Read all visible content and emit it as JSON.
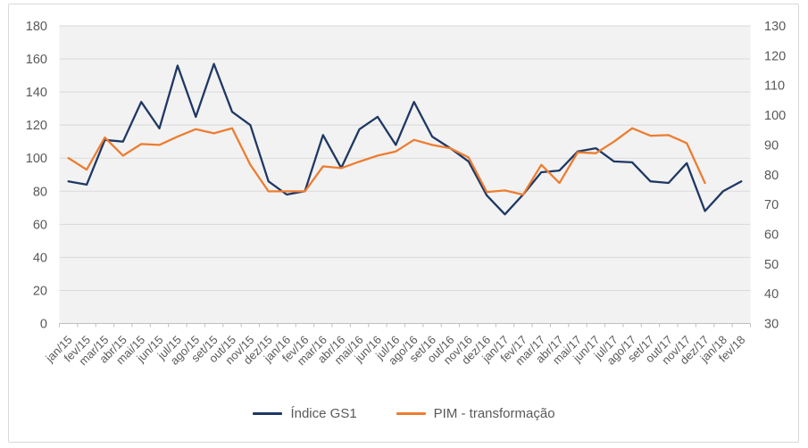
{
  "chart_data": {
    "type": "line",
    "title": "",
    "categories": [
      "jan/15",
      "fev/15",
      "mar/15",
      "abr/15",
      "mai/15",
      "jun/15",
      "jul/15",
      "ago/15",
      "set/15",
      "out/15",
      "nov/15",
      "dez/15",
      "jan/16",
      "fev/16",
      "mar/16",
      "abr/16",
      "mai/16",
      "jun/16",
      "jul/16",
      "ago/16",
      "set/16",
      "out/16",
      "nov/16",
      "dez/16",
      "jan/17",
      "fev/17",
      "mar/17",
      "abr/17",
      "mai/17",
      "jun/17",
      "jul/17",
      "ago/17",
      "set/17",
      "out/17",
      "nov/17",
      "dez/17",
      "jan/18",
      "fev/18"
    ],
    "series": [
      {
        "name": "Índice GS1",
        "axis": "left",
        "color": "#1f3864",
        "values": [
          86,
          84,
          111,
          110,
          134,
          118,
          156,
          125,
          157,
          128,
          120,
          86,
          78,
          80,
          114,
          94,
          117.5,
          125,
          108,
          134,
          113,
          106,
          98,
          77.5,
          66,
          78,
          91.5,
          92.5,
          104,
          106,
          98,
          97.5,
          86,
          85,
          97,
          68,
          80,
          86
        ]
      },
      {
        "name": "PIM - transformação",
        "axis": "right",
        "color": "#ed7d31",
        "values": [
          85.6,
          81.7,
          92.5,
          86.4,
          90.3,
          90,
          92.8,
          95.3,
          93.9,
          95.6,
          83.3,
          74.4,
          74.4,
          74.4,
          82.8,
          82.2,
          84.4,
          86.4,
          87.8,
          91.7,
          90,
          88.9,
          85.8,
          74.2,
          74.7,
          73.3,
          83.3,
          77.2,
          87.5,
          87.2,
          91.1,
          95.6,
          93.1,
          93.3,
          90.6,
          77.2,
          null,
          null
        ]
      }
    ],
    "left_axis": {
      "min": 0,
      "max": 180,
      "step": 20,
      "ticks": [
        0,
        20,
        40,
        60,
        80,
        100,
        120,
        140,
        160,
        180
      ]
    },
    "right_axis": {
      "min": 30,
      "max": 130,
      "step": 10,
      "ticks": [
        30,
        40,
        50,
        60,
        70,
        80,
        90,
        100,
        110,
        120,
        130
      ]
    },
    "grid": "horizontal",
    "legend_position": "bottom",
    "x_label_rotation": -45
  },
  "colors": {
    "series_blue": "#1f3864",
    "series_orange": "#ed7d31",
    "axis_text": "#595959",
    "gridline": "#d9d9d9",
    "plot_fill": "#f2f2f2",
    "axis_line": "#bfbfbf",
    "tick_mark": "#bfbfbf",
    "legend_text": "#595959",
    "frame_border": "#d9d9d9"
  }
}
